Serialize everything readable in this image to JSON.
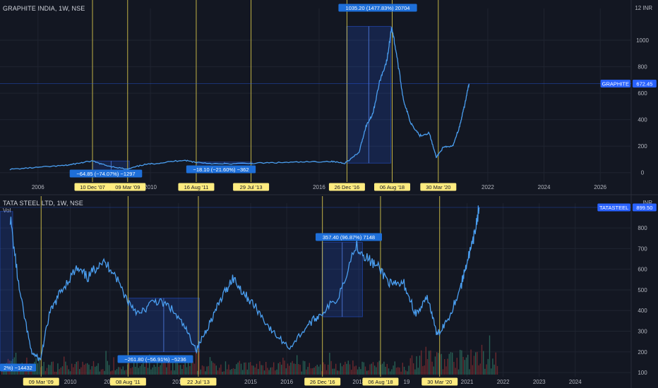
{
  "header": {
    "top_symbol": "GRAPHITE INDIA, 1W, NSE",
    "bottom_symbol": "TATA STEEL LTD, 1W, NSE",
    "vol_label": "Vol",
    "currency": "INR",
    "top_corner": "12"
  },
  "chart_data": [
    {
      "type": "line",
      "title": "GRAPHITE INDIA, 1W, NSE",
      "ylim": [
        -60,
        1240
      ],
      "y_ticks": [
        0,
        200,
        400,
        600,
        800,
        1000
      ],
      "x_ticks": [
        "2006",
        "2010",
        "2016",
        "2022",
        "2024",
        "2026"
      ],
      "last_price": {
        "label": "GRAPHITE",
        "value": "672.45"
      },
      "series": [
        {
          "x": [
            "2005-01",
            "2006-01",
            "2007-01",
            "2007-06",
            "2007-12",
            "2008-06",
            "2009-03",
            "2009-10",
            "2010-06",
            "2011-03",
            "2011-08",
            "2012-06",
            "2013-07",
            "2014-06",
            "2015-06",
            "2016-06",
            "2016-12",
            "2017-06",
            "2017-09",
            "2017-12",
            "2018-03",
            "2018-06",
            "2018-08",
            "2018-10",
            "2019-01",
            "2019-04",
            "2019-08",
            "2019-12",
            "2020-03",
            "2020-06",
            "2020-10",
            "2021-01",
            "2021-03",
            "2021-05"
          ],
          "y": [
            25,
            40,
            55,
            70,
            88,
            55,
            25,
            60,
            75,
            95,
            80,
            65,
            70,
            75,
            80,
            85,
            72,
            150,
            350,
            450,
            700,
            850,
            1105,
            900,
            550,
            380,
            280,
            300,
            115,
            190,
            200,
            350,
            500,
            672
          ]
        }
      ],
      "annotations": [
        {
          "label": "−64.85 (−74.07%) −1297"
        },
        {
          "label": "−18.10 (−21.60%) −362"
        },
        {
          "label": "1035.20 (1477.83%) 20704"
        }
      ],
      "date_markers": [
        "10 Dec '07",
        "09 Mar '09",
        "16 Aug '11",
        "29 Jul '13",
        "26 Dec '16",
        "06 Aug '18",
        "30 Mar '20"
      ],
      "extra_axis_labels": [
        "201",
        "4"
      ]
    },
    {
      "type": "line",
      "title": "TATA STEEL LTD, 1W, NSE",
      "ylim": [
        90,
        920
      ],
      "y_ticks": [
        100,
        200,
        300,
        400,
        500,
        600,
        700,
        800
      ],
      "x_ticks": [
        "2010",
        "2011",
        "2013",
        "2015",
        "2016",
        "2018",
        "2021",
        "2022",
        "2023",
        "2024"
      ],
      "last_price": {
        "label": "TATASTEEL",
        "value": "899.50"
      },
      "series": [
        {
          "x": [
            "2008-05",
            "2008-08",
            "2008-12",
            "2009-03",
            "2009-06",
            "2009-10",
            "2010-03",
            "2010-07",
            "2010-11",
            "2011-03",
            "2011-08",
            "2011-12",
            "2012-05",
            "2012-10",
            "2013-03",
            "2013-07",
            "2013-11",
            "2014-03",
            "2014-07",
            "2014-11",
            "2015-03",
            "2015-08",
            "2016-02",
            "2016-08",
            "2016-12",
            "2017-06",
            "2017-12",
            "2018-04",
            "2018-08",
            "2018-12",
            "2019-04",
            "2019-08",
            "2019-12",
            "2020-03",
            "2020-07",
            "2020-11",
            "2021-01",
            "2021-03",
            "2021-05"
          ],
          "y": [
            850,
            500,
            200,
            160,
            380,
            500,
            600,
            560,
            640,
            600,
            450,
            380,
            450,
            420,
            320,
            210,
            330,
            450,
            560,
            480,
            410,
            300,
            220,
            330,
            380,
            460,
            720,
            650,
            600,
            520,
            530,
            380,
            460,
            280,
            370,
            520,
            640,
            730,
            900
          ]
        }
      ],
      "annotations": [
        {
          "label": "−261.80 (−56.91%) −5236"
        },
        {
          "label": "357.40 (96.87%) 7148"
        },
        {
          "label": "2%) −14432"
        }
      ],
      "date_markers": [
        "09 Mar '09",
        "08 Aug '11",
        "22 Jul '13",
        "26 Dec '16",
        "06 Aug '18",
        "30 Mar '20"
      ],
      "extra_axis_labels": [
        "2",
        "19"
      ]
    }
  ]
}
